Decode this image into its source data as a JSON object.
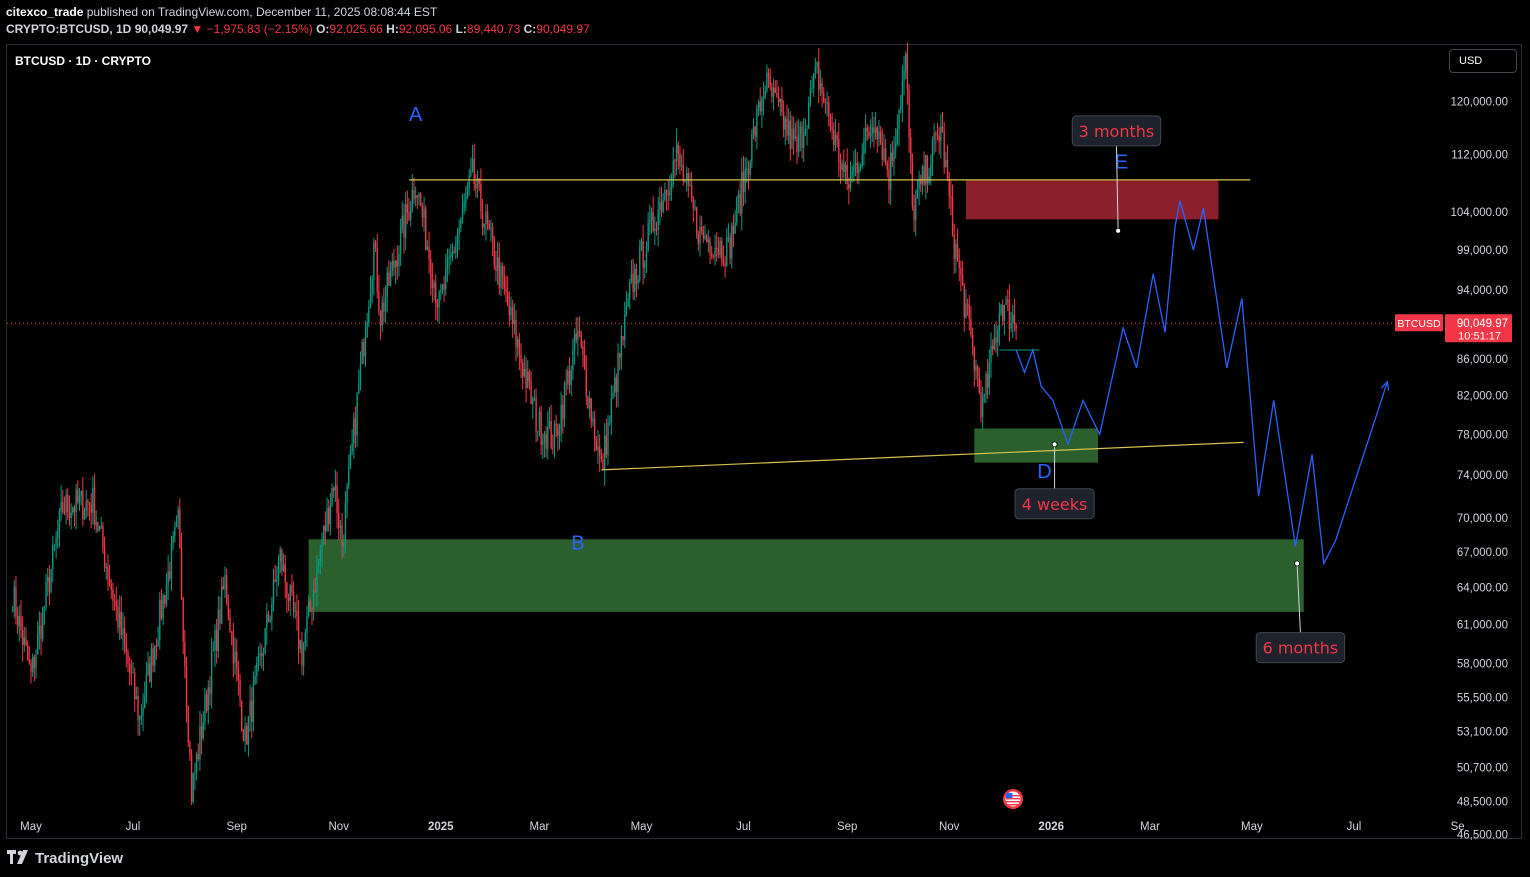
{
  "header": {
    "author": "citexco_trade",
    "published": "published on TradingView.com, December 11, 2025 08:08:44 EST",
    "symbol_line": "CRYPTO:BTCUSD, 1D",
    "last": "90,049.97",
    "change_arrow": "▼",
    "change": "−1,975.83 (−2.15%)",
    "o_label": "O:",
    "o_value": "92,025.66",
    "h_label": "H:",
    "h_value": "92,095.06",
    "l_label": "L:",
    "l_value": "89,440.73",
    "c_label": "C:",
    "c_value": "90,049.97"
  },
  "legend_symbol": "BTCUSD · 1D · CRYPTO",
  "currency_button": "USD",
  "footer": {
    "brand": "TradingView"
  },
  "colors": {
    "background": "#000000",
    "up": "#089981",
    "down": "#f23645",
    "trendline": "#d7c14a",
    "projection": "#2962ff",
    "wave_label": "#2962ff",
    "demand_zone": "#2b5f2e",
    "supply_zone": "#8b1f2b",
    "callout_text": "#f23645",
    "price_tag": "#f23645"
  },
  "chart_data": {
    "type": "candlestick",
    "symbol": "BTCUSD",
    "interval": "1D",
    "price_scale": "log",
    "y_ticks": [
      120000,
      112000,
      104000,
      99000,
      94000,
      86000,
      82000,
      78000,
      74000,
      70000,
      67000,
      64000,
      61000,
      58000,
      55500,
      53100,
      50700,
      48500,
      46500
    ],
    "y_tick_labels": [
      "120,000.00",
      "112,000.00",
      "104,000.00",
      "99,000.00",
      "94,000.00",
      "86,000.00",
      "82,000.00",
      "78,000.00",
      "74,000.00",
      "70,000.00",
      "67,000.00",
      "64,000.00",
      "61,000.00",
      "58,000.00",
      "55,500.00",
      "53,100.00",
      "50,700.00",
      "48,500.00",
      "46,500.00"
    ],
    "x_ticks": [
      {
        "date": "2024-05-01",
        "label": "May"
      },
      {
        "date": "2024-07-01",
        "label": "Jul"
      },
      {
        "date": "2024-09-01",
        "label": "Sep"
      },
      {
        "date": "2024-11-01",
        "label": "Nov"
      },
      {
        "date": "2025-01-01",
        "label": "2025"
      },
      {
        "date": "2025-03-01",
        "label": "Mar"
      },
      {
        "date": "2025-05-01",
        "label": "May"
      },
      {
        "date": "2025-07-01",
        "label": "Jul"
      },
      {
        "date": "2025-09-01",
        "label": "Sep"
      },
      {
        "date": "2025-11-01",
        "label": "Nov"
      },
      {
        "date": "2026-01-01",
        "label": "2026"
      },
      {
        "date": "2026-03-01",
        "label": "Mar"
      },
      {
        "date": "2026-05-01",
        "label": "May"
      },
      {
        "date": "2026-07-01",
        "label": "Jul"
      },
      {
        "date": "2026-09-01",
        "label": "Se"
      }
    ],
    "price_path": [
      [
        "2024-04-20",
        63500
      ],
      [
        "2024-05-01",
        57000
      ],
      [
        "2024-05-20",
        71000
      ],
      [
        "2024-06-07",
        71500
      ],
      [
        "2024-07-05",
        54000
      ],
      [
        "2024-07-28",
        69500
      ],
      [
        "2024-08-05",
        49100
      ],
      [
        "2024-08-25",
        64500
      ],
      [
        "2024-09-06",
        52500
      ],
      [
        "2024-09-27",
        66500
      ],
      [
        "2024-10-10",
        58800
      ],
      [
        "2024-10-29",
        73500
      ],
      [
        "2024-11-03",
        67700
      ],
      [
        "2024-11-22",
        99500
      ],
      [
        "2024-11-26",
        91000
      ],
      [
        "2024-12-17",
        108300
      ],
      [
        "2024-12-31",
        92000
      ],
      [
        "2025-01-20",
        109000
      ],
      [
        "2025-02-05",
        96000
      ],
      [
        "2025-02-28",
        79000
      ],
      [
        "2025-03-10",
        77500
      ],
      [
        "2025-03-24",
        88800
      ],
      [
        "2025-04-07",
        74500
      ],
      [
        "2025-04-25",
        94500
      ],
      [
        "2025-05-22",
        111900
      ],
      [
        "2025-06-05",
        101000
      ],
      [
        "2025-06-22",
        99000
      ],
      [
        "2025-07-14",
        123000
      ],
      [
        "2025-08-02",
        112500
      ],
      [
        "2025-08-14",
        124500
      ],
      [
        "2025-09-01",
        107500
      ],
      [
        "2025-09-18",
        117800
      ],
      [
        "2025-09-26",
        109000
      ],
      [
        "2025-10-06",
        126200
      ],
      [
        "2025-10-10",
        104000
      ],
      [
        "2025-10-27",
        116000
      ],
      [
        "2025-11-04",
        100000
      ],
      [
        "2025-11-21",
        80500
      ],
      [
        "2025-12-02",
        92500
      ],
      [
        "2025-12-11",
        90050
      ]
    ],
    "last_price": 90049.97,
    "last_price_label": "BTCUSD",
    "last_price_value": "90,049.97",
    "countdown": "10:51:17",
    "wave_labels": [
      {
        "text": "A",
        "date": "2024-12-17",
        "price": 117000
      },
      {
        "text": "B",
        "date": "2025-03-24",
        "price": 67200
      },
      {
        "text": "D",
        "date": "2025-12-28",
        "price": 73700
      },
      {
        "text": "E",
        "date": "2026-02-12",
        "price": 110000
      }
    ],
    "trendlines": [
      {
        "from": [
          "2024-12-13",
          108400
        ],
        "to": [
          "2026-04-30",
          108400
        ]
      },
      {
        "from": [
          "2025-04-07",
          74500
        ],
        "to": [
          "2026-04-26",
          77200
        ]
      }
    ],
    "zones": [
      {
        "kind": "supply",
        "from": "2025-11-11",
        "to": "2026-04-11",
        "low": 103000,
        "high": 108300
      },
      {
        "kind": "demand",
        "from": "2025-11-16",
        "to": "2026-01-29",
        "low": 75200,
        "high": 78600
      },
      {
        "kind": "demand",
        "from": "2024-10-14",
        "to": "2026-06-01",
        "low": 62000,
        "high": 68100
      }
    ],
    "projection": [
      [
        "2025-12-11",
        87000
      ],
      [
        "2025-12-16",
        84500
      ],
      [
        "2025-12-21",
        87000
      ],
      [
        "2025-12-26",
        83000
      ],
      [
        "2026-01-02",
        81500
      ],
      [
        "2026-01-11",
        77000
      ],
      [
        "2026-01-20",
        81500
      ],
      [
        "2026-01-30",
        78000
      ],
      [
        "2026-02-13",
        89500
      ],
      [
        "2026-02-21",
        85000
      ],
      [
        "2026-03-03",
        96000
      ],
      [
        "2026-03-10",
        89000
      ],
      [
        "2026-03-16",
        102000
      ],
      [
        "2026-03-19",
        105500
      ],
      [
        "2026-03-27",
        99000
      ],
      [
        "2026-04-02",
        104500
      ],
      [
        "2026-04-16",
        85000
      ],
      [
        "2026-04-25",
        93000
      ],
      [
        "2026-05-05",
        72000
      ],
      [
        "2026-05-14",
        81500
      ],
      [
        "2026-05-27",
        67500
      ],
      [
        "2026-06-06",
        76000
      ],
      [
        "2026-06-13",
        66000
      ],
      [
        "2026-06-20",
        68000
      ],
      [
        "2026-07-21",
        83500
      ]
    ],
    "callouts": [
      {
        "text": "3 months",
        "date": "2026-02-09",
        "price": 115500,
        "point": [
          "2026-02-10",
          101500
        ]
      },
      {
        "text": "4 weeks",
        "date": "2026-01-03",
        "price": 71300,
        "point": [
          "2026-01-03",
          77000
        ]
      },
      {
        "text": "6 months",
        "date": "2026-05-30",
        "price": 59200,
        "point": [
          "2026-05-28",
          66000
        ]
      }
    ]
  }
}
